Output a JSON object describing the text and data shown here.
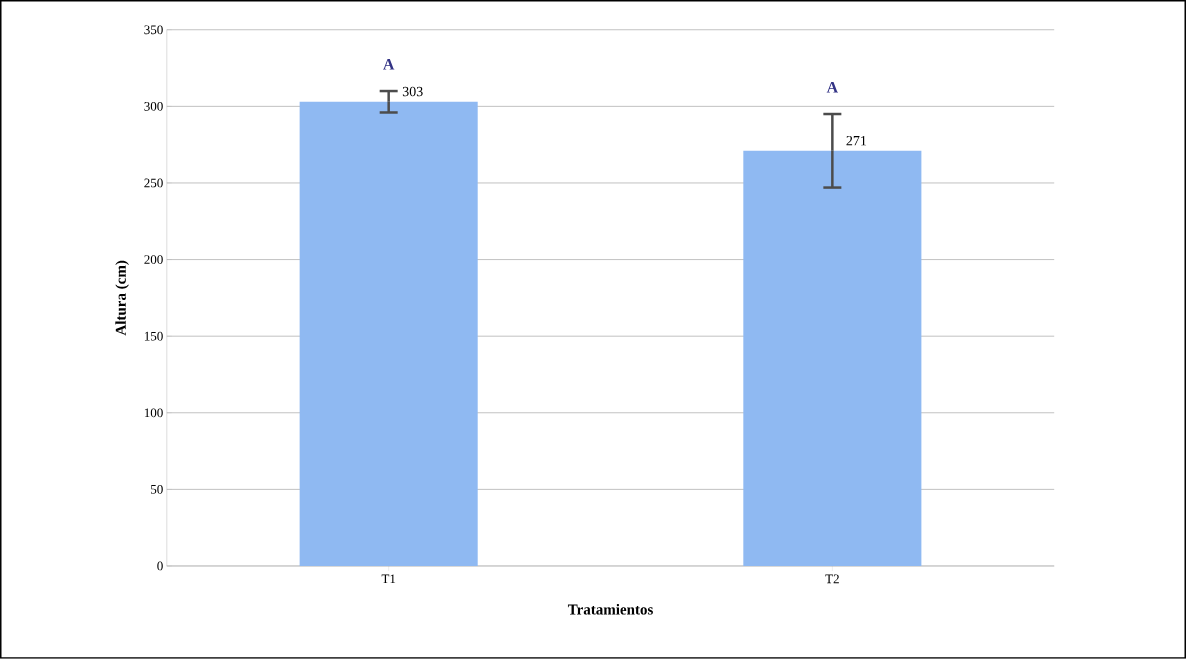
{
  "chart_data": {
    "type": "bar",
    "xlabel": "Tratamientos",
    "ylabel": "Altura (cm)",
    "categories": [
      "T1",
      "T2"
    ],
    "values": [
      303,
      271
    ],
    "errors": [
      7,
      24
    ],
    "color": "#8fb9f2",
    "data_labels": true,
    "annotations": [
      "A",
      "A"
    ],
    "ylim": [
      0,
      350
    ],
    "yticks": [
      0,
      50,
      100,
      150,
      200,
      250,
      300,
      350
    ],
    "grid": "y"
  }
}
